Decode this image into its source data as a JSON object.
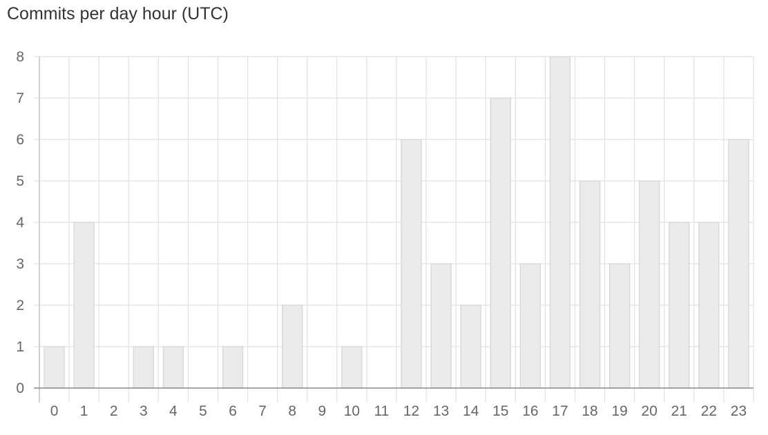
{
  "chart_data": {
    "type": "bar",
    "title": "Commits per day hour (UTC)",
    "xlabel": "",
    "ylabel": "",
    "categories": [
      "0",
      "1",
      "2",
      "3",
      "4",
      "5",
      "6",
      "7",
      "8",
      "9",
      "10",
      "11",
      "12",
      "13",
      "14",
      "15",
      "16",
      "17",
      "18",
      "19",
      "20",
      "21",
      "22",
      "23"
    ],
    "values": [
      1,
      4,
      0,
      1,
      1,
      0,
      1,
      0,
      2,
      0,
      1,
      0,
      6,
      3,
      2,
      7,
      3,
      8,
      5,
      3,
      5,
      4,
      4,
      6
    ],
    "ylim": [
      0,
      8
    ],
    "yticks": [
      "0",
      "1",
      "2",
      "3",
      "4",
      "5",
      "6",
      "7",
      "8"
    ],
    "grid": true,
    "legend": "none",
    "colors": {
      "bar_fill": "#ebebeb",
      "bar_stroke": "#d9d9d9",
      "grid": "#e1e1e1",
      "axis": "#8a8a8a",
      "tick_text": "#666666"
    }
  }
}
